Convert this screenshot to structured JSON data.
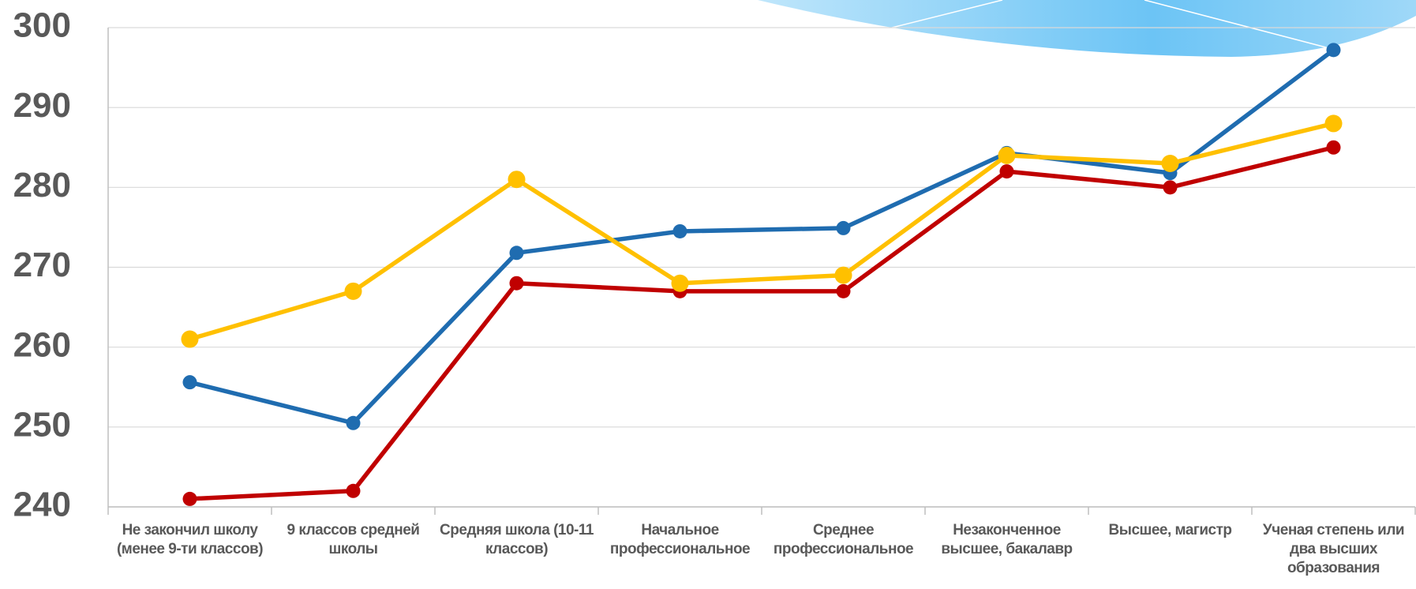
{
  "chart_data": {
    "type": "line",
    "categories": [
      "Не закончил школу (менее 9-ти классов)",
      "9 классов средней школы",
      "Средняя школа (10-11 классов)",
      "Начальное профессиональное",
      "Среднее профессиональное",
      "Незаконченное высшее, бакалавр",
      "Высшее, магистр",
      "Ученая степень или два высших образования"
    ],
    "series": [
      {
        "color": "#1f6cb0",
        "values": [
          255.6,
          250.5,
          271.8,
          274.5,
          274.9,
          284.3,
          281.8,
          297.2
        ]
      },
      {
        "color": "#c00000",
        "values": [
          241,
          242,
          268,
          267,
          267,
          282,
          280,
          285
        ]
      },
      {
        "color": "#ffc000",
        "values": [
          261,
          267,
          281,
          268,
          269,
          284,
          283,
          288
        ]
      }
    ],
    "ylim": [
      240,
      300
    ],
    "yticks": [
      240,
      250,
      260,
      270,
      280,
      290,
      300
    ],
    "grid": true
  }
}
